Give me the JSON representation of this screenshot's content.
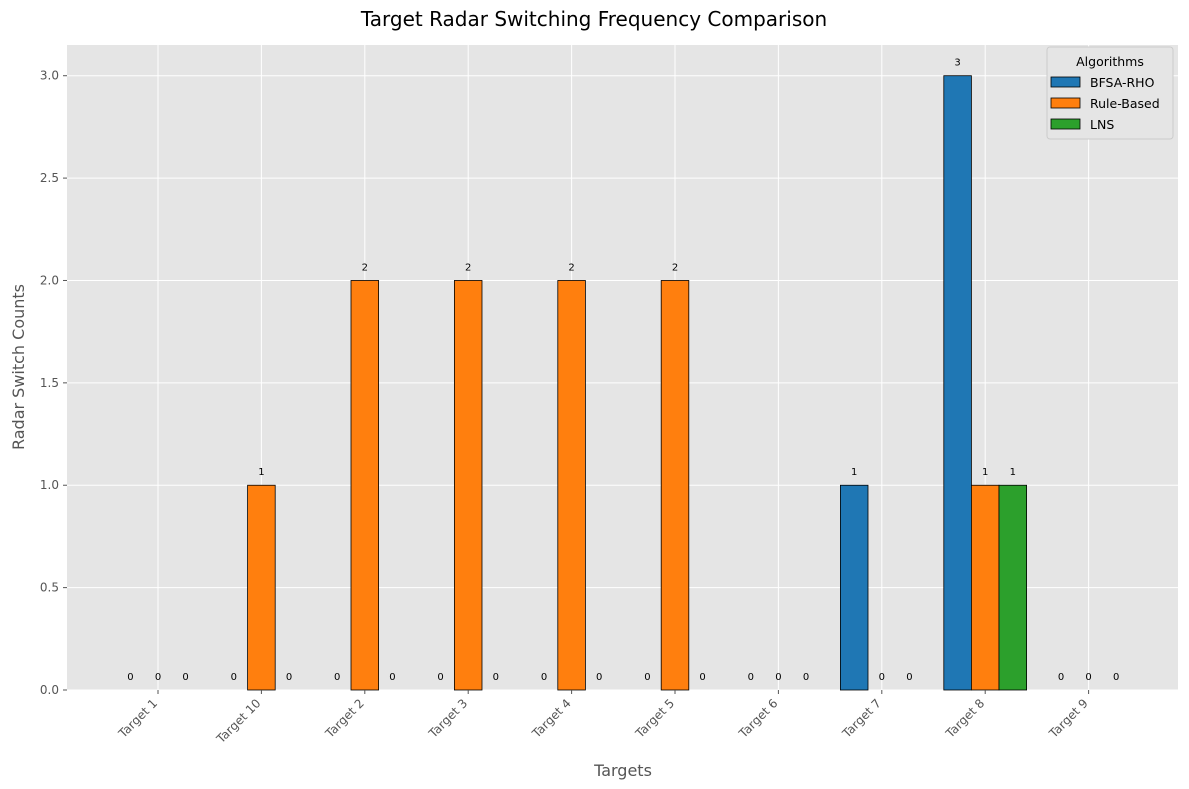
{
  "chart_data": {
    "type": "bar",
    "title": "Target Radar Switching Frequency Comparison",
    "xlabel": "Targets",
    "ylabel": "Radar Switch Counts",
    "categories": [
      "Target 1",
      "Target 10",
      "Target 2",
      "Target 3",
      "Target 4",
      "Target 5",
      "Target 6",
      "Target 7",
      "Target 8",
      "Target 9"
    ],
    "series": [
      {
        "name": "BFSA-RHO",
        "color": "#1f77b4",
        "values": [
          0,
          0,
          0,
          0,
          0,
          0,
          0,
          1,
          3,
          0
        ]
      },
      {
        "name": "Rule-Based",
        "color": "#ff7f0e",
        "values": [
          0,
          1,
          2,
          2,
          2,
          2,
          0,
          0,
          1,
          0
        ]
      },
      {
        "name": "LNS",
        "color": "#2ca02c",
        "values": [
          0,
          0,
          0,
          0,
          0,
          0,
          0,
          0,
          1,
          0
        ]
      }
    ],
    "ylim": [
      0,
      3.15
    ],
    "yticks": [
      0,
      0.5,
      1,
      1.5,
      2,
      2.5,
      3
    ],
    "ytick_labels": [
      "0.0",
      "0.5",
      "1.0",
      "1.5",
      "2.0",
      "2.5",
      "3.0"
    ],
    "legend_title": "Algorithms",
    "legend_position": "top-right",
    "grid": true,
    "background": "#e5e5e5"
  }
}
